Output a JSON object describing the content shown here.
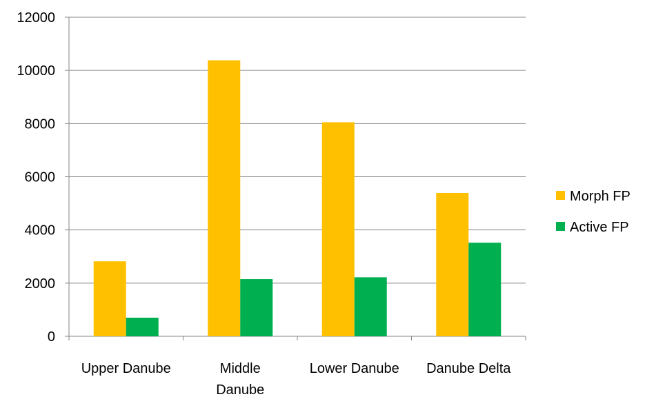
{
  "chart_data": {
    "type": "bar",
    "categories": [
      "Upper Danube",
      "Middle Danube",
      "Lower Danube",
      "Danube Delta"
    ],
    "series": [
      {
        "name": "Morph FP",
        "color": "#FFC000",
        "values": [
          2820,
          10380,
          8050,
          5390
        ]
      },
      {
        "name": "Active FP",
        "color": "#00B050",
        "values": [
          700,
          2150,
          2220,
          3520
        ]
      }
    ],
    "ylim": [
      0,
      12000
    ],
    "yticks": [
      0,
      2000,
      4000,
      6000,
      8000,
      10000,
      12000
    ],
    "grid": true,
    "legend_position": "right",
    "title": "",
    "xlabel": "",
    "ylabel": ""
  }
}
